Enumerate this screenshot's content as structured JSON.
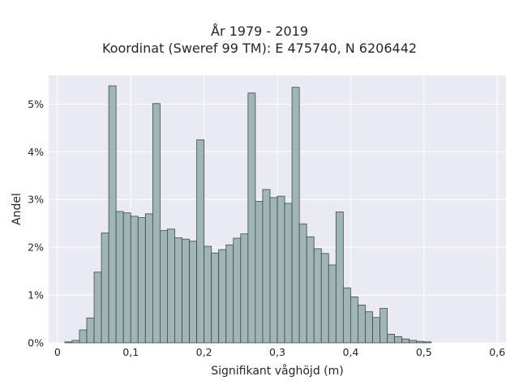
{
  "chart_data": {
    "type": "bar",
    "title_lines": [
      "År 1979 - 2019",
      "Koordinat (Sweref 99 TM): E 475740, N 6206442"
    ],
    "xlabel": "Signifikant våghöjd (m)",
    "ylabel": "Andel",
    "xlim": [
      -0.012,
      0.612
    ],
    "ylim": [
      0,
      5.6
    ],
    "grid": true,
    "background": "#eaeaf2",
    "bar_color": "#9fb5b6",
    "bar_edge": "#3d4a48",
    "bin_width": 0.01,
    "bin_start": 0.01,
    "values": [
      0.02,
      0.05,
      0.27,
      0.52,
      1.48,
      2.3,
      5.38,
      2.75,
      2.72,
      2.65,
      2.62,
      2.7,
      5.01,
      2.35,
      2.38,
      2.2,
      2.17,
      2.13,
      4.25,
      2.02,
      1.88,
      1.95,
      2.05,
      2.19,
      2.28,
      5.23,
      2.96,
      3.21,
      3.04,
      3.07,
      2.92,
      5.35,
      2.49,
      2.22,
      1.97,
      1.87,
      1.63,
      2.74,
      1.15,
      0.96,
      0.79,
      0.65,
      0.53,
      0.72,
      0.18,
      0.13,
      0.08,
      0.05,
      0.03,
      0.02
    ],
    "x_ticks": [
      {
        "value": 0,
        "label": "0"
      },
      {
        "value": 0.1,
        "label": "0,1"
      },
      {
        "value": 0.2,
        "label": "0,2"
      },
      {
        "value": 0.3,
        "label": "0,3"
      },
      {
        "value": 0.4,
        "label": "0,4"
      },
      {
        "value": 0.5,
        "label": "0,5"
      },
      {
        "value": 0.6,
        "label": "0,6"
      }
    ],
    "y_ticks": [
      {
        "value": 0,
        "label": "0%"
      },
      {
        "value": 1,
        "label": "1%"
      },
      {
        "value": 2,
        "label": "2%"
      },
      {
        "value": 3,
        "label": "3%"
      },
      {
        "value": 4,
        "label": "4%"
      },
      {
        "value": 5,
        "label": "5%"
      }
    ]
  }
}
